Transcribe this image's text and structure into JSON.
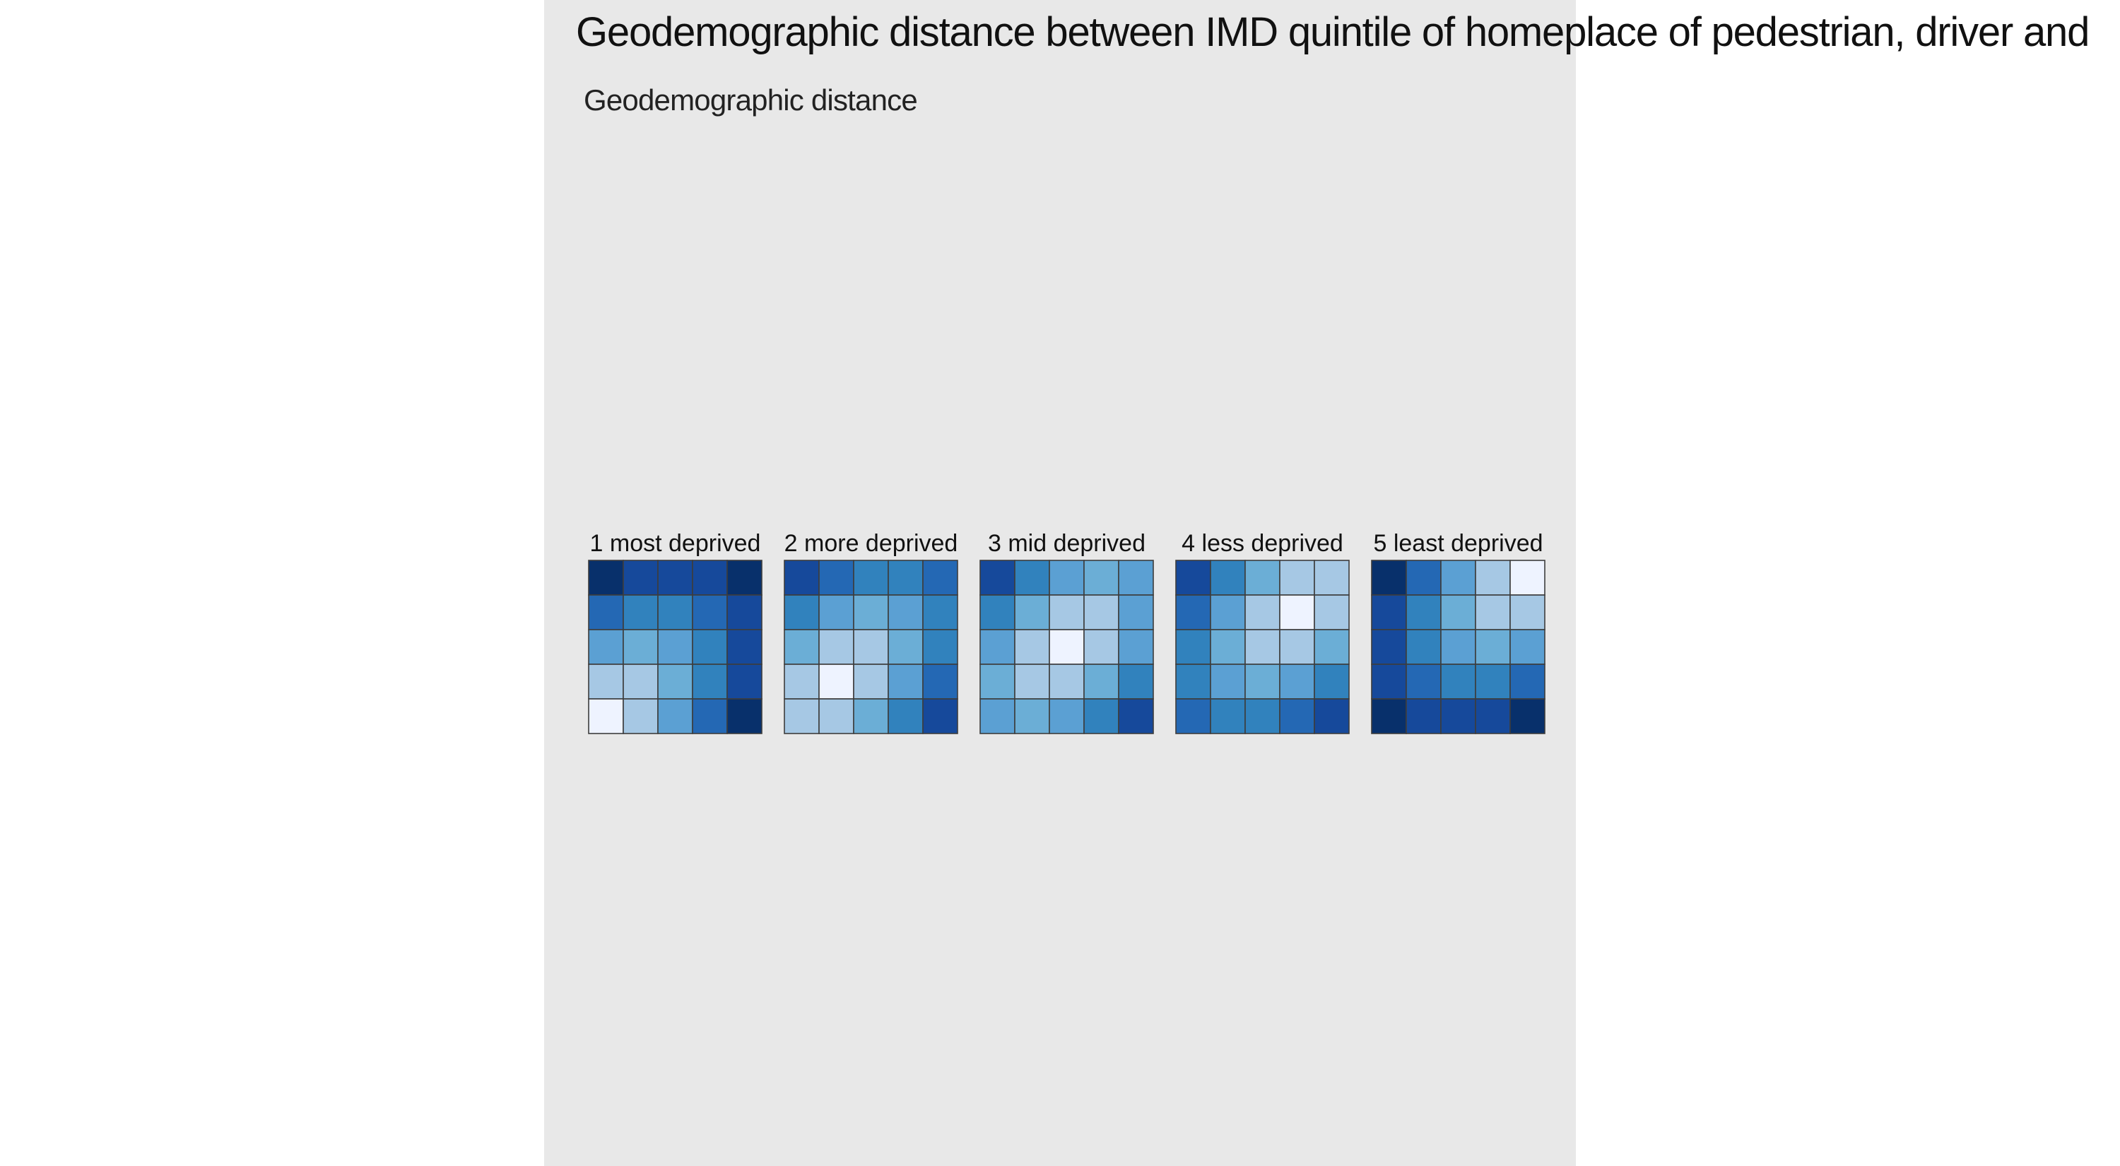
{
  "title": "Geodemographic distance between IMD quintile of homeplace of pedestrian, driver and",
  "subtitle": "Geodemographic distance",
  "colors": {
    "panel_background": "#e8e8e8",
    "cell_border": "#3d3d3d",
    "scale_low": "#eef3ff",
    "scale_high": "#08306b"
  },
  "chart_data": {
    "type": "heatmap",
    "title": "Geodemographic distance between IMD quintile of homeplace of pedestrian, driver and",
    "subtitle": "Geodemographic distance",
    "xlabel": "",
    "ylabel": "",
    "grid": false,
    "value_range": [
      0,
      8
    ],
    "facets": [
      {
        "label": "1 most deprived",
        "values": [
          [
            8,
            7,
            7,
            7,
            8
          ],
          [
            6,
            5,
            5,
            6,
            7
          ],
          [
            4,
            3,
            4,
            5,
            7
          ],
          [
            2,
            2,
            3,
            5,
            7
          ],
          [
            0,
            2,
            4,
            6,
            8
          ]
        ]
      },
      {
        "label": "2 more deprived",
        "values": [
          [
            7,
            6,
            5,
            5,
            6
          ],
          [
            5,
            4,
            3,
            4,
            5
          ],
          [
            3,
            2,
            2,
            3,
            5
          ],
          [
            2,
            0,
            2,
            4,
            6
          ],
          [
            2,
            2,
            3,
            5,
            7
          ]
        ]
      },
      {
        "label": "3 mid deprived",
        "values": [
          [
            7,
            5,
            4,
            3,
            4
          ],
          [
            5,
            3,
            2,
            2,
            4
          ],
          [
            4,
            2,
            0,
            2,
            4
          ],
          [
            3,
            2,
            2,
            3,
            5
          ],
          [
            4,
            3,
            4,
            5,
            7
          ]
        ]
      },
      {
        "label": "4 less deprived",
        "values": [
          [
            7,
            5,
            3,
            2,
            2
          ],
          [
            6,
            4,
            2,
            0,
            2
          ],
          [
            5,
            3,
            2,
            2,
            3
          ],
          [
            5,
            4,
            3,
            4,
            5
          ],
          [
            6,
            5,
            5,
            6,
            7
          ]
        ]
      },
      {
        "label": "5 least deprived",
        "values": [
          [
            8,
            6,
            4,
            2,
            0
          ],
          [
            7,
            5,
            3,
            2,
            2
          ],
          [
            7,
            5,
            4,
            3,
            4
          ],
          [
            7,
            6,
            5,
            5,
            6
          ],
          [
            8,
            7,
            7,
            7,
            8
          ]
        ]
      }
    ]
  }
}
